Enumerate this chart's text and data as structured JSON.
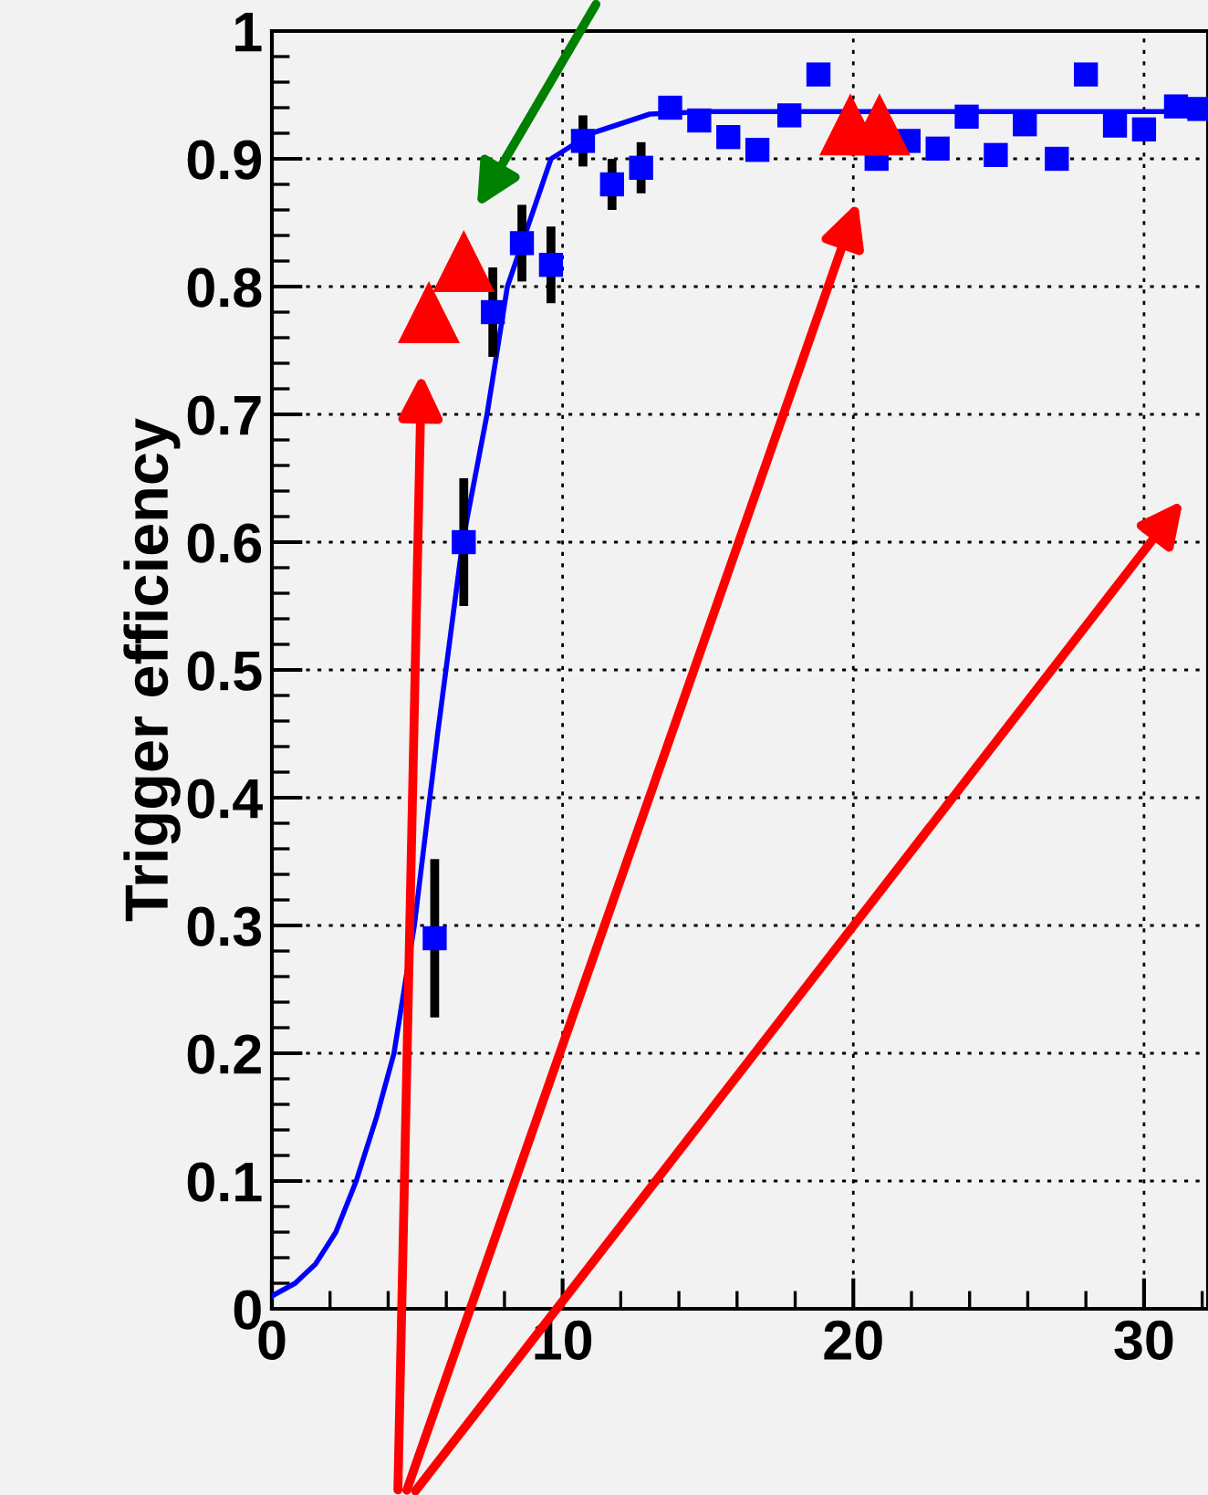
{
  "chart_data": {
    "type": "scatter",
    "ylabel": "Trigger efficiency",
    "xlim": [
      0,
      32.2
    ],
    "ylim": [
      0,
      1
    ],
    "xticks": [
      0,
      10,
      20,
      30
    ],
    "yticks": [
      0,
      0.1,
      0.2,
      0.3,
      0.4,
      0.5,
      0.6,
      0.7,
      0.8,
      0.9,
      1
    ],
    "grid": true,
    "marker": "square",
    "series": [
      {
        "type": "line",
        "marker": "none",
        "color": "#0000ff",
        "x": [
          0,
          0.8,
          1.5,
          2.2,
          2.9,
          3.6,
          4.2,
          4.9,
          5.7,
          6.56,
          7.4,
          8.1,
          9.6,
          11,
          13,
          15,
          32.2
        ],
        "values": [
          0.01,
          0.02,
          0.035,
          0.06,
          0.1,
          0.15,
          0.2,
          0.3,
          0.45,
          0.6,
          0.7,
          0.8,
          0.9,
          0.92,
          0.935,
          0.937,
          0.937
        ]
      },
      {
        "color": "#0000ff",
        "x": [
          5.6,
          6.6,
          7.6,
          8.6,
          9.6,
          10.7,
          11.7,
          12.7,
          13.7,
          14.7,
          15.7,
          16.7,
          17.8,
          18.8,
          20.8,
          21.9,
          22.9,
          23.9,
          24.9,
          25.9,
          27.0,
          28.0,
          29.0,
          30.0,
          31.1,
          31.9
        ],
        "values": [
          0.29,
          0.6,
          0.78,
          0.834,
          0.817,
          0.914,
          0.88,
          0.893,
          0.94,
          0.93,
          0.917,
          0.907,
          0.934,
          0.966,
          0.9,
          0.914,
          0.908,
          0.933,
          0.903,
          0.927,
          0.9,
          0.966,
          0.926,
          0.923,
          0.941,
          0.939
        ],
        "errors": [
          0.062,
          0.05,
          0.035,
          0.03,
          0.03,
          0.02,
          0.02,
          0.02,
          null,
          null,
          null,
          null,
          null,
          null,
          null,
          null,
          null,
          null,
          null,
          null,
          null,
          null,
          null,
          null,
          null,
          null
        ]
      },
      {
        "type": "scatter",
        "marker": "triangle",
        "color": "#ff0000",
        "x": [
          5.4,
          6.6,
          19.9,
          20.9
        ],
        "values": [
          0.78,
          0.82,
          0.927,
          0.927
        ]
      }
    ]
  }
}
